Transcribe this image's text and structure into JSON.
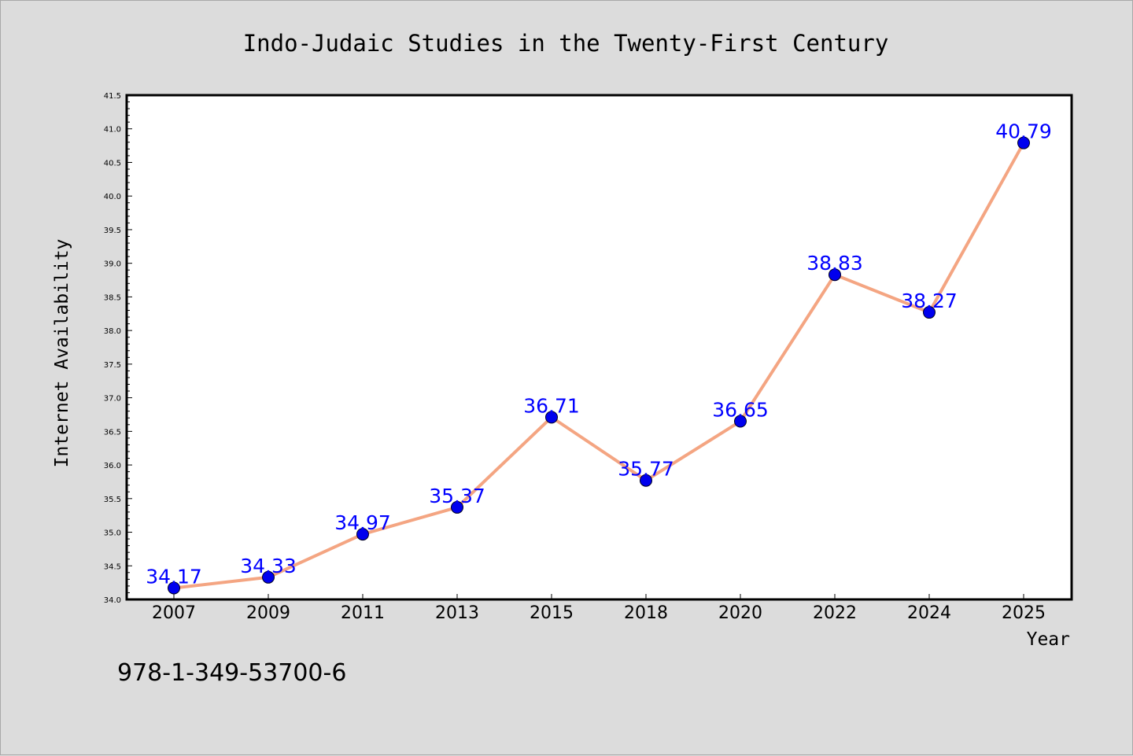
{
  "chart_data": {
    "type": "line",
    "title": "Indo-Judaic Studies in the Twenty-First Century",
    "xlabel": "Year",
    "ylabel": "Internet Availability",
    "categories": [
      "2007",
      "2009",
      "2011",
      "2013",
      "2015",
      "2018",
      "2020",
      "2022",
      "2024",
      "2025"
    ],
    "series": [
      {
        "values": [
          34.17,
          34.33,
          34.97,
          35.37,
          36.71,
          35.77,
          36.65,
          38.83,
          38.27,
          40.79
        ],
        "data_labels": [
          "34.17",
          "34.33",
          "34.97",
          "35.37",
          "36.71",
          "35.77",
          "36.65",
          "38.83",
          "38.27",
          "40.79"
        ]
      }
    ],
    "ylim": [
      34.0,
      41.5
    ],
    "yticks": [
      "34.0",
      "34.5",
      "35.0",
      "35.5",
      "36.0",
      "36.5",
      "37.0",
      "37.5",
      "38.0",
      "38.5",
      "39.0",
      "39.5",
      "40.0",
      "40.5",
      "41.0",
      "41.5"
    ],
    "grid": false,
    "legend": "none",
    "annotation": "978-1-349-53700-6",
    "colors": {
      "line": "#f4a582",
      "marker": "#0000ee",
      "data_label": "#0000ff",
      "background": "#dcdcdc",
      "plot_background": "#ffffff"
    }
  }
}
